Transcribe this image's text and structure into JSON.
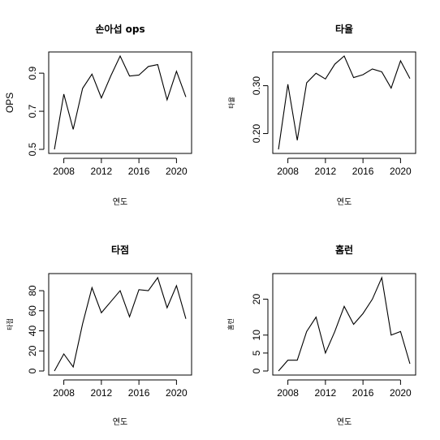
{
  "chart_data": [
    {
      "type": "line",
      "title": "손아섭 ops",
      "xlabel": "연도",
      "ylabel": "OPS",
      "x": [
        2007,
        2008,
        2009,
        2010,
        2011,
        2012,
        2013,
        2014,
        2015,
        2016,
        2017,
        2018,
        2019,
        2020,
        2021
      ],
      "values": [
        0.5,
        0.79,
        0.605,
        0.82,
        0.895,
        0.77,
        0.885,
        0.99,
        0.885,
        0.89,
        0.935,
        0.945,
        0.76,
        0.91,
        0.775
      ],
      "xlim": [
        2007,
        2021
      ],
      "ylim": [
        0.5,
        0.99
      ],
      "xticks": [
        "2008",
        "2012",
        "2016",
        "2020"
      ],
      "yticks": [
        "0.5",
        "0.7",
        "0.9"
      ]
    },
    {
      "type": "line",
      "title": "타율",
      "xlabel": "연도",
      "ylabel": "타율",
      "x": [
        2007,
        2008,
        2009,
        2010,
        2011,
        2012,
        2013,
        2014,
        2015,
        2016,
        2017,
        2018,
        2019,
        2020,
        2021
      ],
      "values": [
        0.167,
        0.303,
        0.186,
        0.306,
        0.326,
        0.314,
        0.345,
        0.362,
        0.317,
        0.323,
        0.335,
        0.329,
        0.295,
        0.352,
        0.315
      ],
      "xlim": [
        2007,
        2021
      ],
      "ylim": [
        0.167,
        0.362
      ],
      "xticks": [
        "2008",
        "2012",
        "2016",
        "2020"
      ],
      "yticks": [
        "0.20",
        "0.30"
      ]
    },
    {
      "type": "line",
      "title": "타점",
      "xlabel": "연도",
      "ylabel": "타점",
      "x": [
        2007,
        2008,
        2009,
        2010,
        2011,
        2012,
        2013,
        2014,
        2015,
        2016,
        2017,
        2018,
        2019,
        2020,
        2021
      ],
      "values": [
        0,
        17,
        4,
        47,
        83,
        58,
        69,
        80,
        54,
        81,
        80,
        93,
        63,
        85,
        52
      ],
      "xlim": [
        2007,
        2021
      ],
      "ylim": [
        0,
        93
      ],
      "xticks": [
        "2008",
        "2012",
        "2016",
        "2020"
      ],
      "yticks": [
        "0",
        "20",
        "40",
        "60",
        "80"
      ]
    },
    {
      "type": "line",
      "title": "홈런",
      "xlabel": "연도",
      "ylabel": "홈런",
      "x": [
        2007,
        2008,
        2009,
        2010,
        2011,
        2012,
        2013,
        2014,
        2015,
        2016,
        2017,
        2018,
        2019,
        2020,
        2021
      ],
      "values": [
        0,
        3,
        3,
        11,
        15,
        5,
        11,
        18,
        13,
        16,
        20,
        26,
        10,
        11,
        2
      ],
      "xlim": [
        2007,
        2021
      ],
      "ylim": [
        0,
        26
      ],
      "xticks": [
        "2008",
        "2012",
        "2016",
        "2020"
      ],
      "yticks": [
        "0",
        "5",
        "10",
        "20"
      ]
    }
  ]
}
